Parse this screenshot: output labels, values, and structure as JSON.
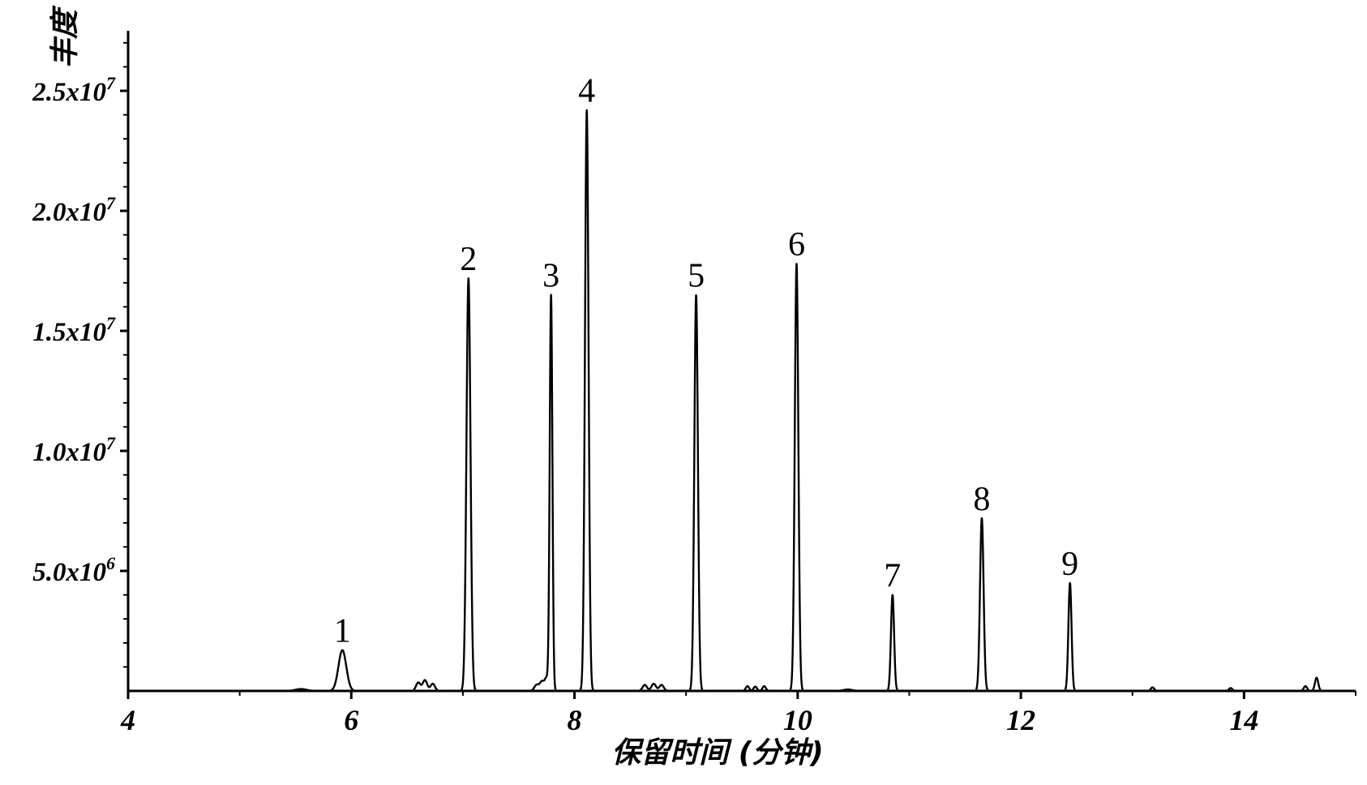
{
  "chart_data": {
    "type": "line",
    "title": "",
    "xlabel": "保留时间 (分钟)",
    "ylabel": "丰度",
    "xlim": [
      4,
      15
    ],
    "ylim": [
      0,
      27500000
    ],
    "x_ticks": [
      4,
      6,
      8,
      10,
      12,
      14
    ],
    "x_tick_labels": [
      "4",
      "6",
      "8",
      "10",
      "12",
      "14"
    ],
    "y_ticks": [
      {
        "value": 5000000,
        "mantissa": "5.0x10",
        "exponent": "6"
      },
      {
        "value": 10000000,
        "mantissa": "1.0x10",
        "exponent": "7"
      },
      {
        "value": 15000000,
        "mantissa": "1.5x10",
        "exponent": "7"
      },
      {
        "value": 20000000,
        "mantissa": "2.0x10",
        "exponent": "7"
      },
      {
        "value": 25000000,
        "mantissa": "2.5x10",
        "exponent": "7"
      }
    ],
    "grid": false,
    "legend": "none",
    "peaks": [
      {
        "label": "1",
        "x": 5.92,
        "y": 1700000,
        "width": 0.035
      },
      {
        "label": "2",
        "x": 7.05,
        "y": 17200000,
        "width": 0.018
      },
      {
        "label": "3",
        "x": 7.79,
        "y": 16500000,
        "width": 0.012
      },
      {
        "label": "4",
        "x": 8.11,
        "y": 24200000,
        "width": 0.016
      },
      {
        "label": "5",
        "x": 9.09,
        "y": 16500000,
        "width": 0.016
      },
      {
        "label": "6",
        "x": 9.99,
        "y": 17800000,
        "width": 0.016
      },
      {
        "label": "7",
        "x": 10.85,
        "y": 4000000,
        "width": 0.014
      },
      {
        "label": "8",
        "x": 11.65,
        "y": 7200000,
        "width": 0.016
      },
      {
        "label": "9",
        "x": 12.44,
        "y": 4500000,
        "width": 0.014
      }
    ],
    "minor_features": [
      {
        "x": 5.55,
        "y": 80000,
        "width": 0.05
      },
      {
        "x": 6.6,
        "y": 350000,
        "width": 0.02
      },
      {
        "x": 6.66,
        "y": 450000,
        "width": 0.02
      },
      {
        "x": 6.73,
        "y": 300000,
        "width": 0.02
      },
      {
        "x": 7.66,
        "y": 250000,
        "width": 0.02
      },
      {
        "x": 7.71,
        "y": 400000,
        "width": 0.02
      },
      {
        "x": 7.75,
        "y": 500000,
        "width": 0.015
      },
      {
        "x": 8.63,
        "y": 250000,
        "width": 0.02
      },
      {
        "x": 8.71,
        "y": 300000,
        "width": 0.02
      },
      {
        "x": 8.78,
        "y": 250000,
        "width": 0.02
      },
      {
        "x": 9.55,
        "y": 200000,
        "width": 0.015
      },
      {
        "x": 9.62,
        "y": 180000,
        "width": 0.015
      },
      {
        "x": 9.7,
        "y": 200000,
        "width": 0.015
      },
      {
        "x": 10.45,
        "y": 60000,
        "width": 0.04
      },
      {
        "x": 13.18,
        "y": 150000,
        "width": 0.015
      },
      {
        "x": 13.88,
        "y": 120000,
        "width": 0.015
      },
      {
        "x": 14.55,
        "y": 200000,
        "width": 0.015
      },
      {
        "x": 14.65,
        "y": 550000,
        "width": 0.015
      }
    ]
  }
}
